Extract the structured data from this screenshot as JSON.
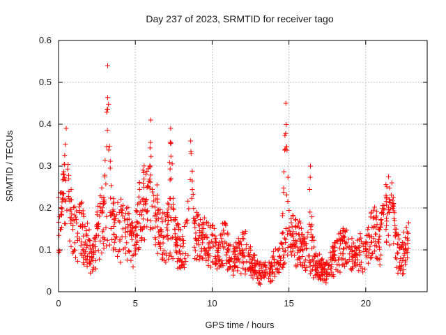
{
  "chart_data": {
    "type": "scatter",
    "title": "Day 237 of 2023, SRMTID for receiver tago",
    "xlabel": "GPS time / hours",
    "ylabel": "SRMTID / TECUs",
    "xlim": [
      0,
      24
    ],
    "ylim": [
      0,
      0.6
    ],
    "xticks": [
      0,
      5,
      10,
      15,
      20
    ],
    "yticks": [
      0,
      0.1,
      0.2,
      0.3,
      0.4,
      0.5,
      0.6
    ],
    "xtick_labels": [
      "0",
      "5",
      "10",
      "15",
      "20"
    ],
    "ytick_labels": [
      "0",
      "0.1",
      "0.2",
      "0.3",
      "0.4",
      "0.5",
      "0.6"
    ],
    "grid": true,
    "marker": "+",
    "series": [
      {
        "name": "SRMTID",
        "color": "#ff0000",
        "x": [
          0.0,
          0.2,
          0.4,
          0.6,
          0.8,
          1.0,
          1.2,
          1.4,
          1.6,
          1.8,
          2.0,
          2.2,
          2.4,
          2.6,
          2.8,
          3.0,
          3.2,
          3.4,
          3.6,
          3.8,
          4.0,
          4.2,
          4.4,
          4.6,
          4.8,
          5.0,
          5.2,
          5.4,
          5.6,
          5.8,
          6.0,
          6.2,
          6.4,
          6.6,
          6.8,
          7.0,
          7.2,
          7.4,
          7.6,
          7.8,
          8.0,
          8.2,
          8.4,
          8.6,
          8.8,
          9.0,
          9.2,
          9.4,
          9.6,
          9.8,
          10.0,
          10.2,
          10.4,
          10.6,
          10.8,
          11.0,
          11.2,
          11.4,
          11.6,
          11.8,
          12.0,
          12.2,
          12.4,
          12.6,
          12.8,
          13.0,
          13.2,
          13.4,
          13.6,
          13.8,
          14.0,
          14.2,
          14.4,
          14.6,
          14.8,
          15.0,
          15.2,
          15.4,
          15.6,
          15.8,
          16.0,
          16.2,
          16.4,
          16.6,
          16.8,
          17.0,
          17.2,
          17.4,
          17.6,
          17.8,
          18.0,
          18.2,
          18.4,
          18.6,
          18.8,
          19.0,
          19.2,
          19.4,
          19.6,
          19.8,
          20.0,
          20.2,
          20.4,
          20.6,
          20.8,
          21.0,
          21.2,
          21.4,
          21.6,
          21.8,
          22.0,
          22.2,
          22.4,
          22.6,
          22.8
        ],
        "y": [
          0.15,
          0.18,
          0.22,
          0.2,
          0.17,
          0.16,
          0.14,
          0.15,
          0.13,
          0.12,
          0.1,
          0.08,
          0.12,
          0.15,
          0.18,
          0.17,
          0.19,
          0.18,
          0.16,
          0.15,
          0.14,
          0.16,
          0.15,
          0.13,
          0.11,
          0.12,
          0.17,
          0.2,
          0.22,
          0.21,
          0.19,
          0.18,
          0.17,
          0.15,
          0.14,
          0.13,
          0.12,
          0.14,
          0.13,
          0.11,
          0.1,
          0.12,
          0.14,
          0.16,
          0.15,
          0.14,
          0.13,
          0.12,
          0.13,
          0.12,
          0.11,
          0.1,
          0.09,
          0.11,
          0.12,
          0.1,
          0.08,
          0.07,
          0.08,
          0.09,
          0.1,
          0.09,
          0.08,
          0.07,
          0.06,
          0.06,
          0.05,
          0.05,
          0.04,
          0.05,
          0.06,
          0.07,
          0.08,
          0.09,
          0.1,
          0.11,
          0.12,
          0.13,
          0.12,
          0.11,
          0.1,
          0.09,
          0.08,
          0.07,
          0.06,
          0.06,
          0.05,
          0.05,
          0.06,
          0.07,
          0.08,
          0.09,
          0.1,
          0.11,
          0.1,
          0.09,
          0.08,
          0.09,
          0.1,
          0.08,
          0.09,
          0.12,
          0.13,
          0.14,
          0.12,
          0.13,
          0.16,
          0.18,
          0.2,
          0.15,
          0.1,
          0.08,
          0.09,
          0.11,
          0.12
        ],
        "peaks": [
          {
            "x": 0.5,
            "y": 0.39
          },
          {
            "x": 3.2,
            "y": 0.54
          },
          {
            "x": 6.0,
            "y": 0.41
          },
          {
            "x": 7.3,
            "y": 0.39
          },
          {
            "x": 8.6,
            "y": 0.36
          },
          {
            "x": 14.8,
            "y": 0.45
          },
          {
            "x": 16.4,
            "y": 0.3
          },
          {
            "x": 21.7,
            "y": 0.26
          }
        ]
      }
    ]
  }
}
